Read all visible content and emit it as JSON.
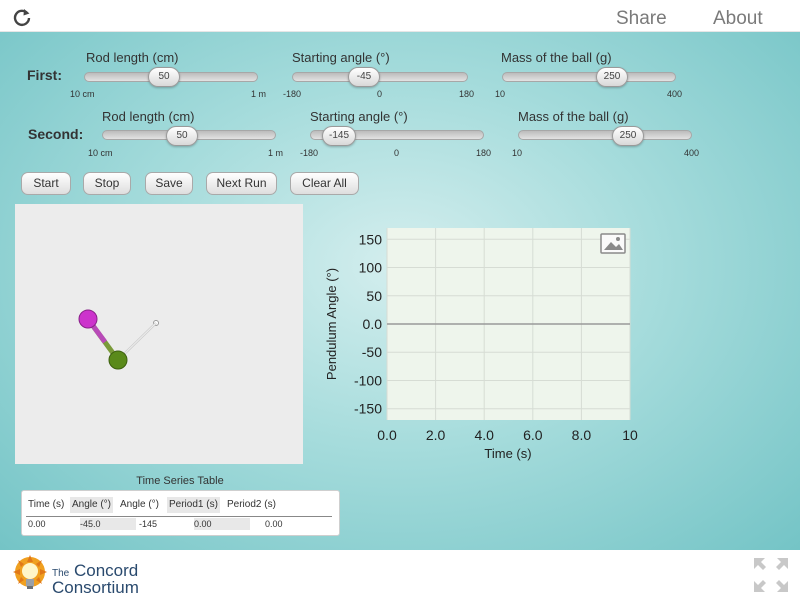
{
  "topbar": {
    "share_label": "Share",
    "about_label": "About"
  },
  "first": {
    "row_label": "First:",
    "rod": {
      "label": "Rod length (cm)",
      "value": "50",
      "min_label": "10 cm",
      "max_label": "1 m"
    },
    "angle": {
      "label": "Starting angle (°)",
      "value": "-45",
      "min_label": "-180",
      "mid_label": "0",
      "max_label": "180"
    },
    "mass": {
      "label": "Mass of the ball (g)",
      "value": "250",
      "min_label": "10",
      "max_label": "400"
    }
  },
  "second": {
    "row_label": "Second:",
    "rod": {
      "label": "Rod length (cm)",
      "value": "50",
      "min_label": "10 cm",
      "max_label": "1 m"
    },
    "angle": {
      "label": "Starting angle (°)",
      "value": "-145",
      "min_label": "-180",
      "mid_label": "0",
      "max_label": "180"
    },
    "mass": {
      "label": "Mass of the ball (g)",
      "value": "250",
      "min_label": "10",
      "max_label": "400"
    }
  },
  "buttons": {
    "start": "Start",
    "stop": "Stop",
    "save": "Save",
    "next_run": "Next Run",
    "clear_all": "Clear All"
  },
  "chart_data": {
    "type": "line",
    "title": "",
    "xlabel": "Time (s)",
    "ylabel": "Pendulum Angle (°)",
    "xlim": [
      0,
      10
    ],
    "ylim": [
      -170,
      170
    ],
    "xticks": [
      "0.0",
      "2.0",
      "4.0",
      "6.0",
      "8.0",
      "10"
    ],
    "xtick_values": [
      0,
      2,
      4,
      6,
      8,
      10
    ],
    "yticks": [
      "150",
      "100",
      "50",
      "0.0",
      "-50",
      "-100",
      "-150"
    ],
    "ytick_values": [
      150,
      100,
      50,
      0,
      -50,
      -100,
      -150
    ],
    "grid": true,
    "series": [],
    "zero_line": true,
    "screenshot_icon": "image-icon"
  },
  "table": {
    "title": "Time Series Table",
    "headers": [
      "Time (s)",
      "Angle (°)",
      "Angle (°)",
      "Period1 (s)",
      "Period2 (s)"
    ],
    "row": [
      "0.00",
      "-45.0",
      "-145",
      "0.00",
      "0.00"
    ]
  },
  "footer": {
    "logo_small": "The",
    "logo_line1": "Concord",
    "logo_line2": "Consortium"
  },
  "colors": {
    "background_center": "#d4eeee",
    "background_edge": "#74c4c6",
    "pendulum1_ball": "#cc33cc",
    "pendulum1_rod": "#7a9a3a",
    "pendulum2_ball": "#5a8a1a",
    "pendulum2_rod": "#cccccc",
    "graph_background": "#eef5ec",
    "logo_text": "#2a4a6e"
  }
}
